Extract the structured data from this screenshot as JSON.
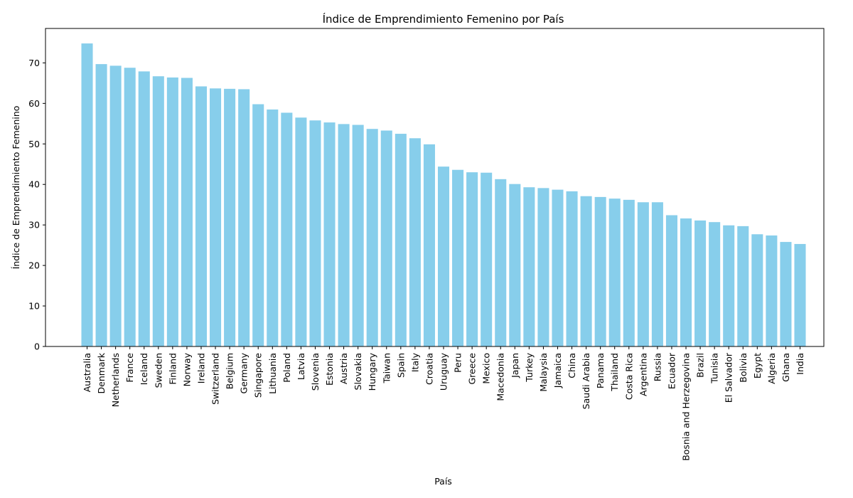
{
  "chart_data": {
    "type": "bar",
    "title": "Índice de Emprendimiento Femenino por País",
    "xlabel": "País",
    "ylabel": "Índice de Emprendimiento Femenino",
    "ylim": [
      0,
      78.5
    ],
    "yticks": [
      0,
      10,
      20,
      30,
      40,
      50,
      60,
      70
    ],
    "grid": false,
    "bar_color": "#87CEEB",
    "categories": [
      "Australia",
      "Denmark",
      "Netherlands",
      "France",
      "Iceland",
      "Sweden",
      "Finland",
      "Norway",
      "Ireland",
      "Switzerland",
      "Belgium",
      "Germany",
      "Singapore",
      "Lithuania",
      "Poland",
      "Latvia",
      "Slovenia",
      "Estonia",
      "Austria",
      "Slovakia",
      "Hungary",
      "Taiwan",
      "Spain",
      "Italy",
      "Croatia",
      "Uruguay",
      "Peru",
      "Greece",
      "Mexico",
      "Macedonia",
      "Japan",
      "Turkey",
      "Malaysia",
      "Jamaica",
      "China",
      "Saudi Arabia",
      "Panama",
      "Thailand",
      "Costa Rica",
      "Argentina",
      "Russia",
      "Ecuador",
      "Bosnia and Herzegovina",
      "Brazil",
      "Tunisia",
      "El Salvador",
      "Bolivia",
      "Egypt",
      "Algeria",
      "Ghana",
      "India"
    ],
    "values": [
      74.8,
      69.7,
      69.3,
      68.8,
      67.9,
      66.7,
      66.4,
      66.3,
      64.2,
      63.7,
      63.6,
      63.5,
      59.8,
      58.5,
      57.7,
      56.5,
      55.8,
      55.3,
      54.9,
      54.7,
      53.7,
      53.3,
      52.5,
      51.4,
      49.9,
      44.4,
      43.6,
      43.0,
      42.9,
      41.3,
      40.1,
      39.3,
      39.1,
      38.7,
      38.3,
      37.1,
      36.9,
      36.5,
      36.2,
      35.6,
      35.6,
      32.4,
      31.6,
      31.1,
      30.7,
      29.9,
      29.7,
      27.7,
      27.4,
      25.8,
      25.3
    ]
  }
}
